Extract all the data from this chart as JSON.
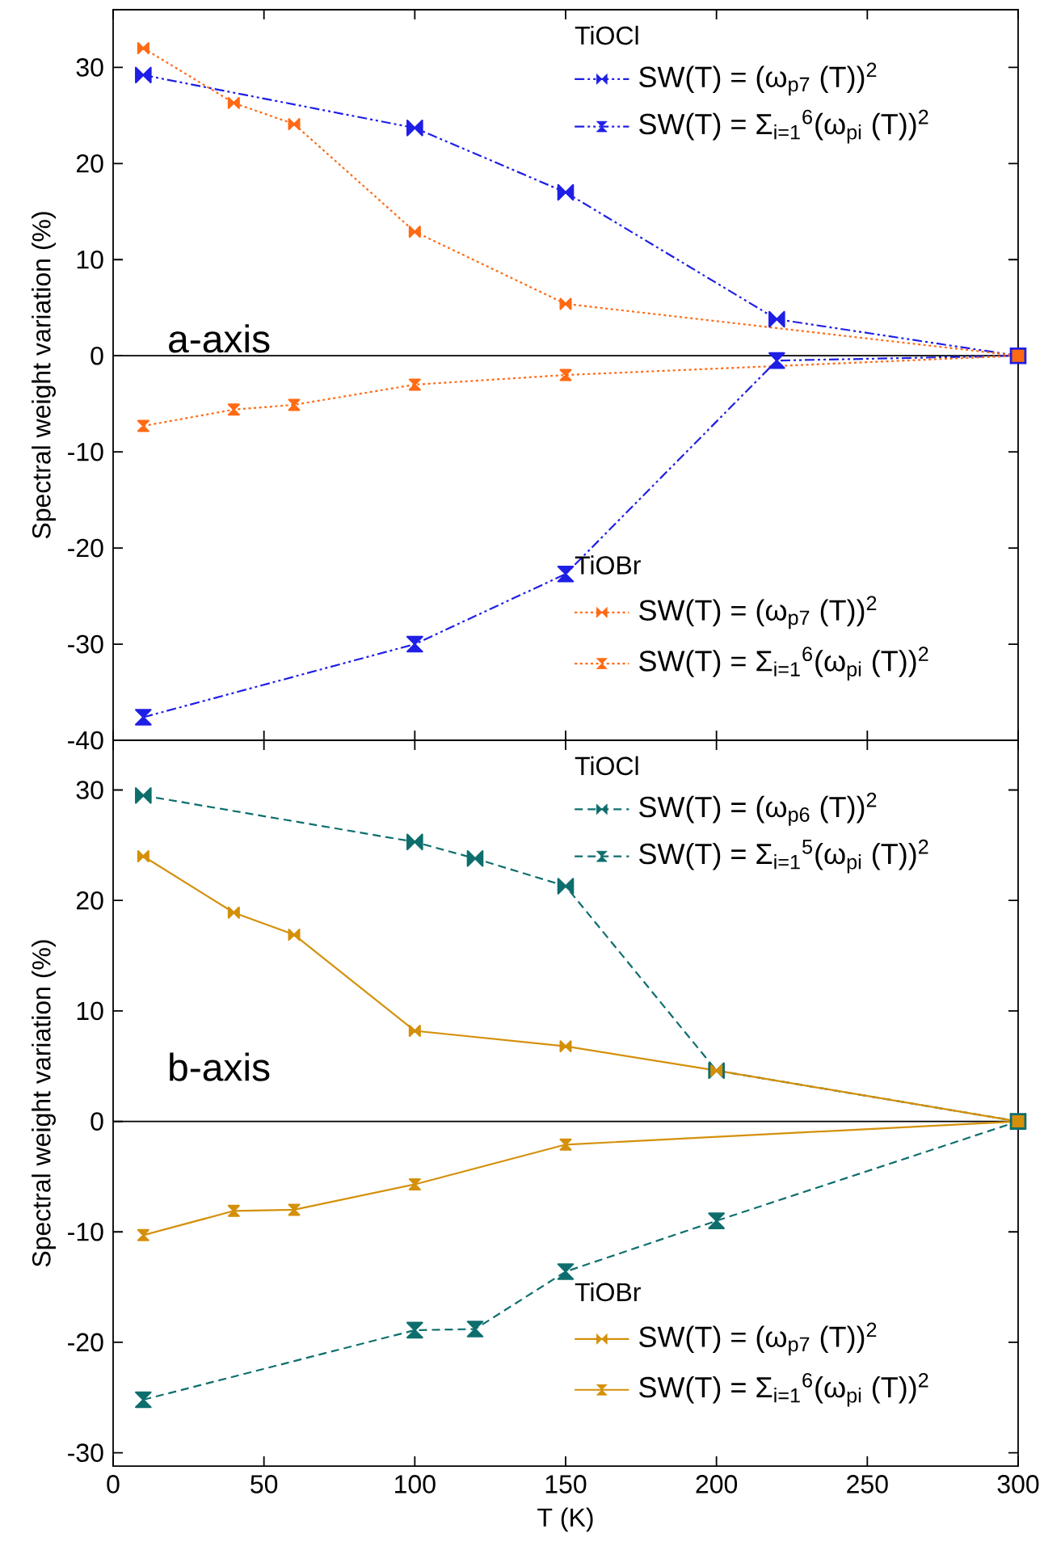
{
  "chart_data": [
    {
      "type": "line",
      "ylabel": "Spectral weight variation (%)",
      "annotations": [
        "a-axis",
        "TiOCl",
        "TiOBr"
      ],
      "xlim": [
        0,
        300
      ],
      "xticks": [
        0,
        50,
        100,
        150,
        200,
        250,
        300
      ],
      "ylim": [
        -40,
        36
      ],
      "yticks": [
        -40,
        -30,
        -20,
        -10,
        0,
        10,
        20,
        30
      ],
      "tick_labels": "y",
      "legend": "right",
      "marker": "diamond",
      "ref_lines": [
        {
          "axis": "y",
          "value": 0,
          "color": "#000000"
        }
      ],
      "series": [
        {
          "name": "SW(T) = (ω$_{p7}$ (T))$^{2}$",
          "color": "#1f1fe6",
          "line_style": "dashdotted",
          "x": [
            10,
            100,
            150,
            220,
            300
          ],
          "values": [
            29.2,
            23.7,
            17,
            3.8,
            0
          ]
        },
        {
          "name": "SW(T) = Σ$_{i=1}$$^{6}$(ω$_{pi}$ (T))$^{2}$",
          "color": "#1f1fe6",
          "line_style": "dashdotted",
          "x": [
            10,
            100,
            150,
            220,
            300
          ],
          "values": [
            -37.6,
            -30,
            -22.7,
            -0.5,
            0
          ]
        },
        {
          "name": "SW(T) = (ω$_{p7}$ (T))$^{2}$",
          "color": "#ff6a13",
          "line_style": "dotted",
          "x": [
            10,
            40,
            60,
            100,
            150,
            300
          ],
          "values": [
            32,
            26.3,
            24.1,
            12.9,
            5.4,
            0
          ]
        },
        {
          "name": "SW(T) =  Σ$_{i=1}$$^{6}$(ω$_{pi}$ (T))$^{2}$",
          "color": "#ff6a13",
          "line_style": "dotted",
          "x": [
            10,
            40,
            60,
            100,
            150,
            300
          ],
          "values": [
            -7.3,
            -5.6,
            -5.1,
            -3,
            -2,
            0
          ]
        }
      ]
    },
    {
      "type": "line",
      "xlabel": "T (K)",
      "ylabel": "Spectral weight variation (%)",
      "annotations": [
        "b-axis",
        "TiOCl",
        "TiOBr"
      ],
      "xlim": [
        0,
        300
      ],
      "xticks": [
        0,
        50,
        100,
        150,
        200,
        250,
        300
      ],
      "ylim": [
        -31.2,
        34.5
      ],
      "yticks": [
        -30,
        -20,
        -10,
        0,
        10,
        20,
        30
      ],
      "legend": "right",
      "marker": "diamond",
      "ref_lines": [
        {
          "axis": "y",
          "value": 0,
          "color": "#000000"
        }
      ],
      "series": [
        {
          "name": "SW(T) = (ω$_{p6}$ (T))$^{2}$",
          "color": "#0e6e6e",
          "line_style": "dashed",
          "x": [
            10,
            100,
            120,
            150,
            200,
            300
          ],
          "values": [
            29.5,
            25.3,
            23.8,
            21.3,
            4.6,
            0
          ]
        },
        {
          "name": "SW(T) = Σ$_{i=1}$$^{5}$(ω$_{pi}$ (T))$^{2}$",
          "color": "#0e6e6e",
          "line_style": "dashed",
          "x": [
            10,
            100,
            120,
            150,
            200,
            300
          ],
          "values": [
            -25.2,
            -18.9,
            -18.8,
            -13.6,
            -9,
            0
          ]
        },
        {
          "name": "SW(T) = (ω$_{p7}$ (T))$^{2}$",
          "color": "#d4900a",
          "line_style": "solid",
          "x": [
            10,
            40,
            60,
            100,
            150,
            200,
            300
          ],
          "values": [
            24,
            18.9,
            16.9,
            8.2,
            6.8,
            4.6,
            0
          ]
        },
        {
          "name": "SW(T) =  Σ$_{i=1}$$^{6}$(ω$_{pi}$ (T))$^{2}$",
          "color": "#d4900a",
          "line_style": "solid",
          "x": [
            10,
            40,
            60,
            100,
            150,
            300
          ],
          "values": [
            -10.3,
            -8.1,
            -8,
            -5.7,
            -2.1,
            0
          ]
        }
      ]
    }
  ]
}
